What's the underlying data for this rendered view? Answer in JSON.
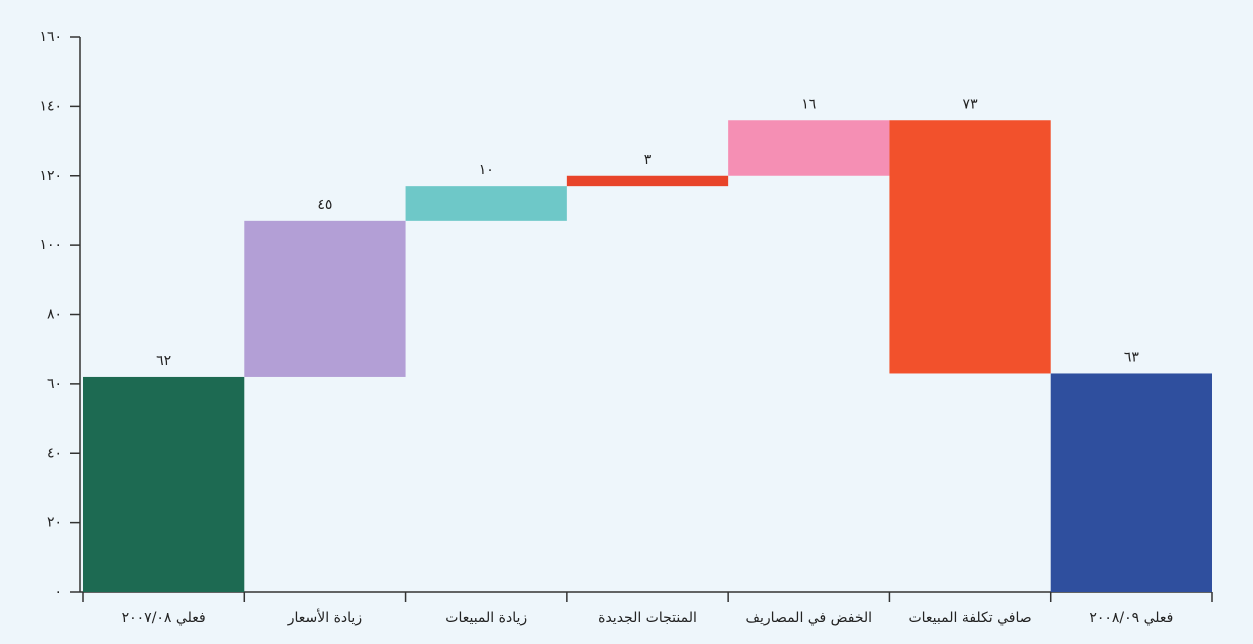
{
  "chart_data": {
    "type": "waterfall",
    "categories": [
      "فعلي ٢٠٠٧/٠٨",
      "زيادة الأسعار",
      "زيادة المبيعات",
      "المنتجات الجديدة",
      "الخفض في المصاريف",
      "صافي تكلفة المبيعات",
      "فعلي ٢٠٠٨/٠٩"
    ],
    "values": [
      62,
      45,
      10,
      3,
      16,
      -73,
      63
    ],
    "value_labels": [
      "٦٢",
      "٤٥",
      "١٠",
      "٣",
      "١٦",
      "٧٣",
      "٦٣"
    ],
    "measures": [
      "absolute",
      "relative",
      "relative",
      "relative",
      "relative",
      "relative",
      "absolute"
    ],
    "colors": [
      "#1d6a52",
      "#b39fd6",
      "#6ec8c8",
      "#e8442a",
      "#f58fb4",
      "#f2512c",
      "#2f4f9e"
    ],
    "ylim": [
      0,
      160
    ],
    "yticks": [
      {
        "value": 0,
        "label": "٠"
      },
      {
        "value": 20,
        "label": "٢٠"
      },
      {
        "value": 40,
        "label": "٤٠"
      },
      {
        "value": 60,
        "label": "٦٠"
      },
      {
        "value": 80,
        "label": "٨٠"
      },
      {
        "value": 100,
        "label": "١٠٠"
      },
      {
        "value": 120,
        "label": "١٢٠"
      },
      {
        "value": 140,
        "label": "١٤٠"
      },
      {
        "value": 160,
        "label": "١٦٠"
      }
    ],
    "grid": false
  }
}
